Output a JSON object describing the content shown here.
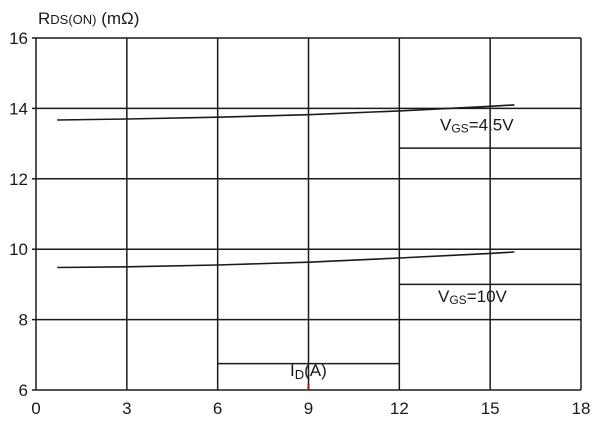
{
  "chart_data": {
    "type": "line",
    "ylabel": {
      "main": "R",
      "sub": "DS(ON)",
      "unit": " (mΩ)"
    },
    "xlabel": {
      "main": "I",
      "sub": "D",
      "unit": "(A)"
    },
    "x_ticks": [
      "0",
      "3",
      "6",
      "9",
      "12",
      "15",
      "18"
    ],
    "y_ticks": [
      "6",
      "8",
      "10",
      "12",
      "14",
      "16"
    ],
    "xlim": [
      0,
      18
    ],
    "ylim": [
      6,
      16
    ],
    "grid": true,
    "series": [
      {
        "label": {
          "main": "V",
          "sub": "GS",
          "value": "=4.5V"
        },
        "x": [
          0.7,
          3,
          6,
          9,
          12,
          15,
          15.8
        ],
        "y": [
          13.67,
          13.7,
          13.75,
          13.82,
          13.93,
          14.06,
          14.1
        ]
      },
      {
        "label": {
          "main": "V",
          "sub": "GS",
          "value": "=10V"
        },
        "x": [
          0.7,
          3,
          6,
          9,
          12,
          15,
          15.8
        ],
        "y": [
          9.48,
          9.5,
          9.55,
          9.63,
          9.75,
          9.88,
          9.92
        ]
      }
    ],
    "colors": {
      "line": "#1a1a1a",
      "grid": "#1a1a1a",
      "axis_tick": "#8b1a1a"
    }
  }
}
